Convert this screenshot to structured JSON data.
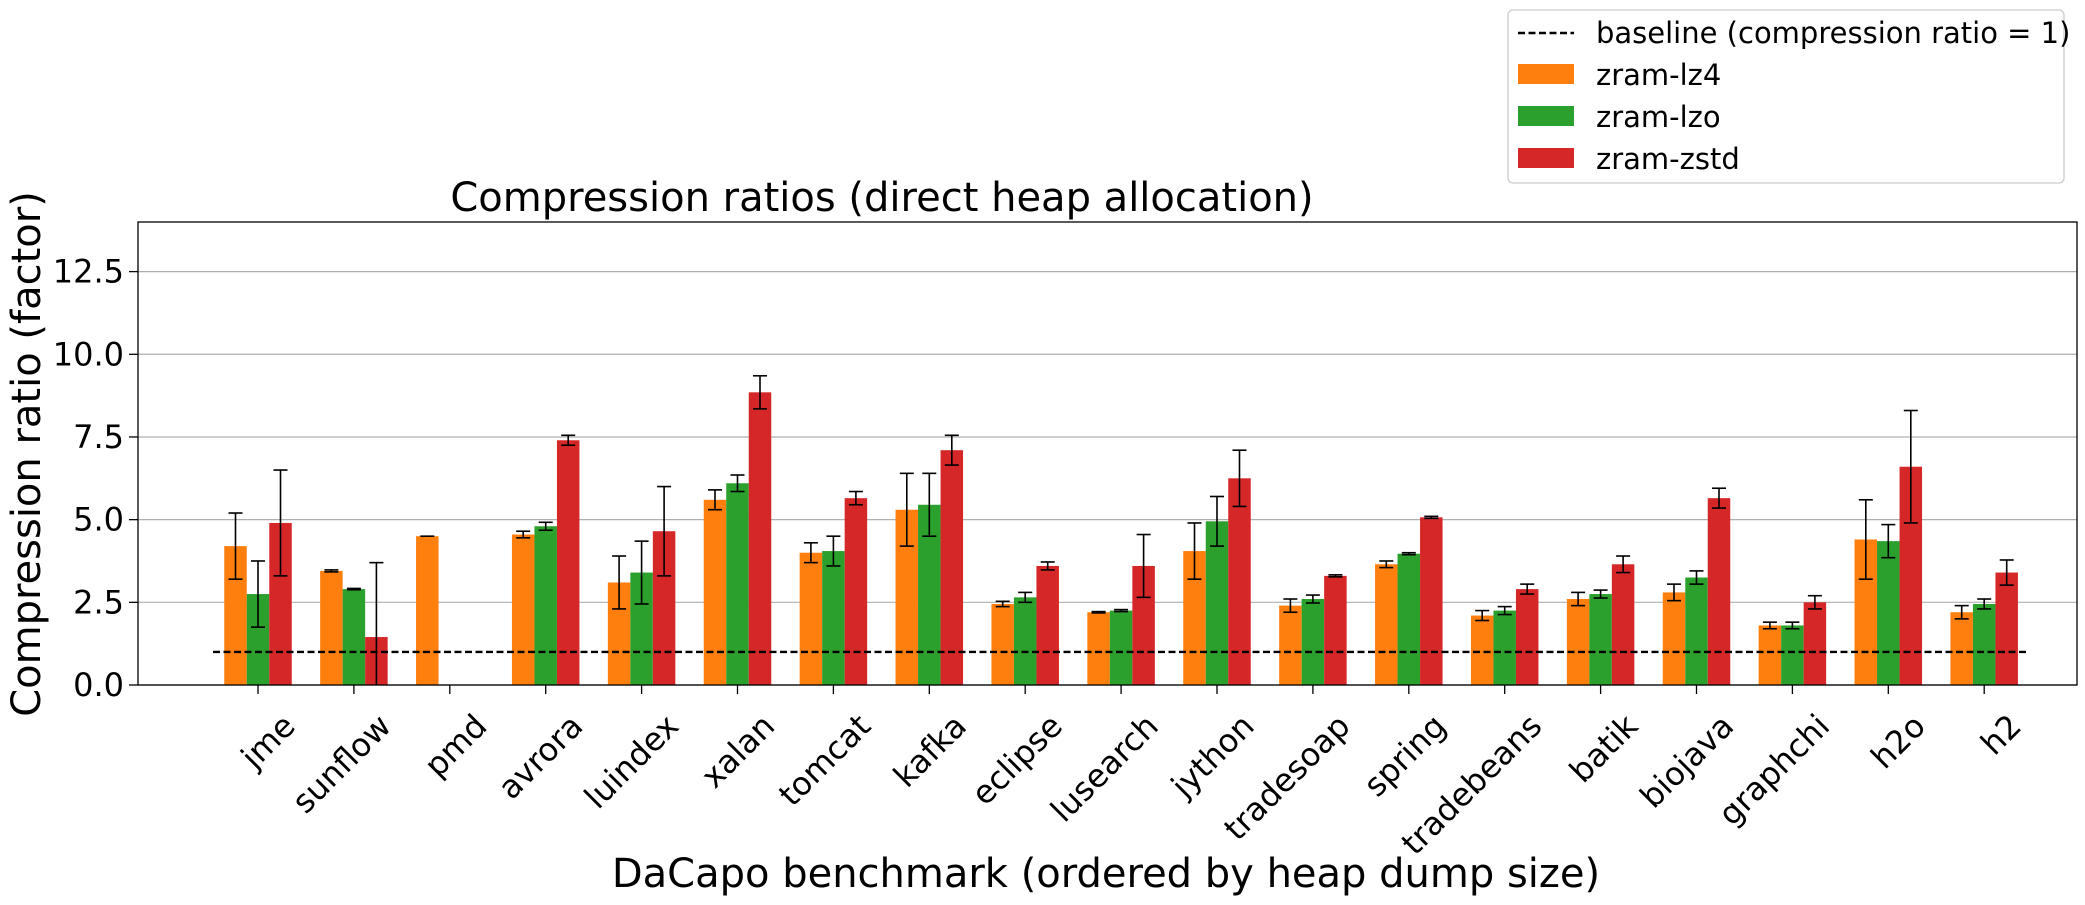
{
  "chart_data": {
    "type": "bar",
    "title": "Compression ratios (direct heap allocation)",
    "xlabel": "DaCapo benchmark (ordered by heap dump size)",
    "ylabel": "Compression ratio (factor)",
    "ylim": [
      0,
      14
    ],
    "yticks": [
      0.0,
      2.5,
      5.0,
      7.5,
      10.0,
      12.5
    ],
    "ytick_labels": [
      "0.0",
      "2.5",
      "5.0",
      "7.5",
      "10.0",
      "12.5"
    ],
    "grid": "horizontal",
    "legend_position": "upper right, above plot",
    "categories": [
      "jme",
      "sunflow",
      "pmd",
      "avrora",
      "luindex",
      "xalan",
      "tomcat",
      "kafka",
      "eclipse",
      "lusearch",
      "jython",
      "tradesoap",
      "spring",
      "tradebeans",
      "batik",
      "biojava",
      "graphchi",
      "h2o",
      "h2"
    ],
    "baseline": {
      "name": "baseline (compression ratio = 1)",
      "value": 1,
      "color": "#000000",
      "style": "dashed"
    },
    "series": [
      {
        "name": "zram-lz4",
        "color": "#ff7f0e",
        "values": [
          4.2,
          3.45,
          4.5,
          4.55,
          3.1,
          5.6,
          4.0,
          5.3,
          2.45,
          2.2,
          4.05,
          2.4,
          3.65,
          2.1,
          2.6,
          2.8,
          1.8,
          4.4,
          2.2
        ],
        "errors": [
          1.0,
          0.03,
          0.0,
          0.1,
          0.8,
          0.3,
          0.3,
          1.1,
          0.08,
          0.02,
          0.85,
          0.2,
          0.1,
          0.15,
          0.2,
          0.25,
          0.1,
          1.2,
          0.2
        ]
      },
      {
        "name": "zram-lzo",
        "color": "#2ca02c",
        "values": [
          2.75,
          2.9,
          null,
          4.8,
          3.4,
          6.1,
          4.05,
          5.45,
          2.65,
          2.25,
          4.95,
          2.6,
          3.97,
          2.25,
          2.75,
          3.25,
          1.8,
          4.35,
          2.45
        ],
        "errors": [
          1.0,
          0.02,
          null,
          0.12,
          0.95,
          0.25,
          0.45,
          0.95,
          0.15,
          0.03,
          0.75,
          0.12,
          0.03,
          0.12,
          0.12,
          0.2,
          0.1,
          0.5,
          0.15
        ]
      },
      {
        "name": "zram-zstd",
        "color": "#d62728",
        "values": [
          4.9,
          1.45,
          null,
          7.4,
          4.65,
          8.85,
          5.65,
          7.1,
          3.6,
          3.6,
          6.25,
          3.3,
          5.07,
          2.9,
          3.65,
          5.65,
          2.5,
          6.6,
          3.4
        ],
        "errors": [
          1.6,
          2.25,
          null,
          0.15,
          1.35,
          0.5,
          0.2,
          0.45,
          0.12,
          0.95,
          0.85,
          0.03,
          0.03,
          0.15,
          0.25,
          0.3,
          0.2,
          1.7,
          0.38
        ]
      }
    ]
  }
}
